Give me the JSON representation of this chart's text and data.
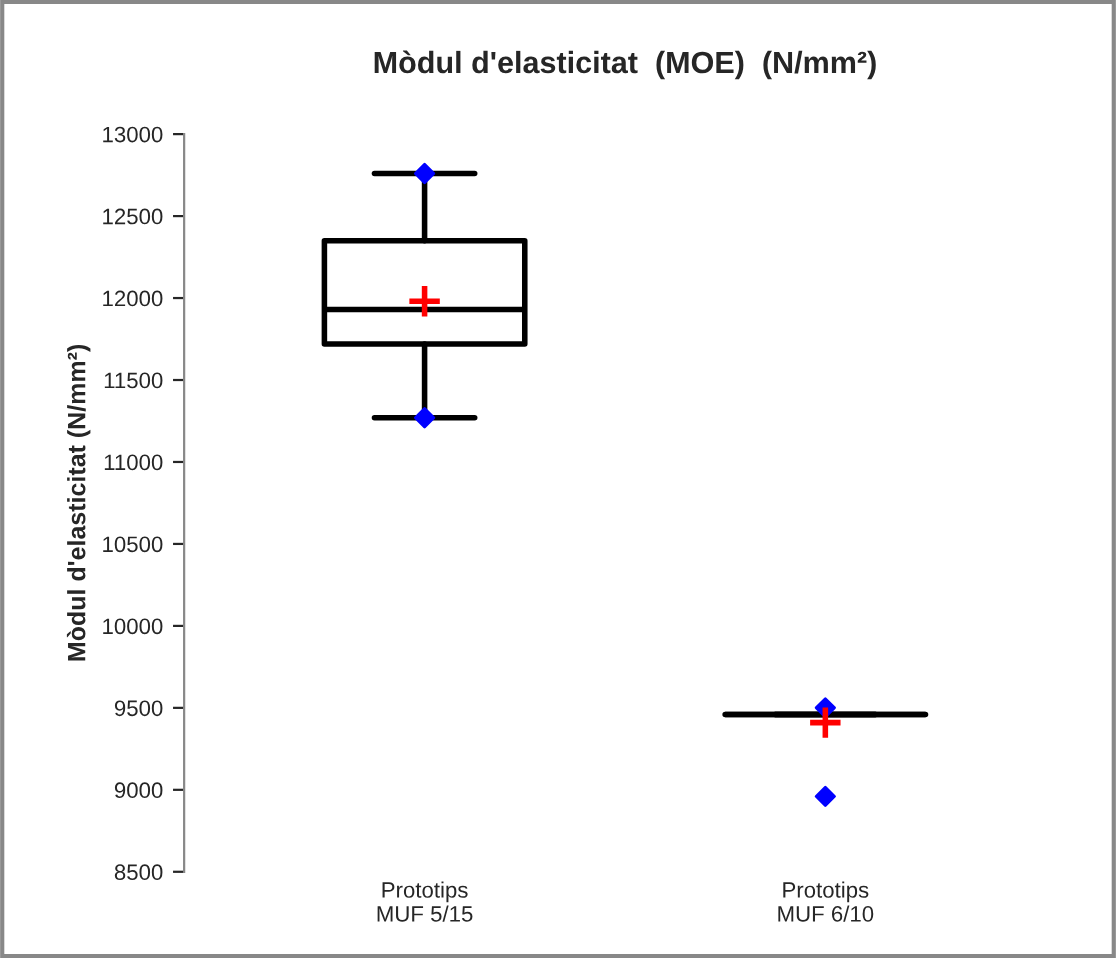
{
  "chart_data": {
    "type": "box",
    "title": "Mòdul d'elasticitat  (MOE)  (N/mm²)",
    "ylabel": "Mòdul d'elasticitat (N/mm²)",
    "categories": [
      "Prototips\nMUF 5/15",
      "Prototips\nMUF 6/10"
    ],
    "boxes": [
      {
        "low": 11270,
        "q1": 11720,
        "median": 11930,
        "q3": 12350,
        "high": 12760,
        "mean": 11980,
        "outliers": [
          12760,
          11270
        ]
      },
      {
        "low": 9460,
        "q1": 9460,
        "median": 9460,
        "q3": 9460,
        "high": 9460,
        "mean": 9410,
        "outliers": [
          9500,
          8960
        ]
      }
    ],
    "ylim": [
      8500,
      13000
    ],
    "yticks": [
      8500,
      9000,
      9500,
      10000,
      10500,
      11000,
      11500,
      12000,
      12500,
      13000
    ],
    "grid": false
  }
}
